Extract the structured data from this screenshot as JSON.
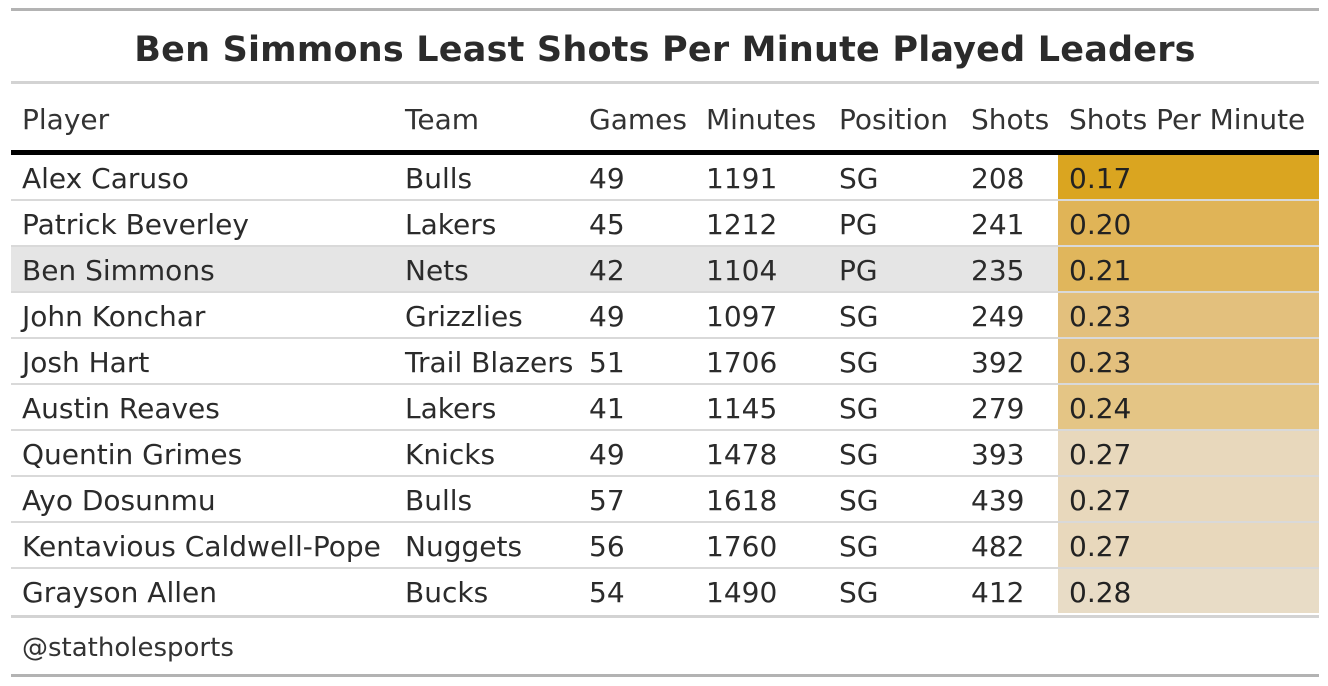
{
  "title": "Ben Simmons Least Shots Per Minute Played Leaders",
  "source": "@statholesports",
  "colors": {
    "highlight_row": "#e5e5e5",
    "scale_low": "#daa520",
    "scale_high": "#e8dcc6"
  },
  "chart_data": {
    "type": "table",
    "columns": [
      "Player",
      "Team",
      "Games",
      "Minutes",
      "Position",
      "Shots",
      "Shots Per Minute"
    ],
    "highlight_player": "Ben Simmons",
    "rows": [
      {
        "player": "Alex Caruso",
        "team": "Bulls",
        "games": "49",
        "minutes": "1191",
        "position": "SG",
        "shots": "208",
        "spm": "0.17",
        "color": "#daa520"
      },
      {
        "player": "Patrick Beverley",
        "team": "Lakers",
        "games": "45",
        "minutes": "1212",
        "position": "PG",
        "shots": "241",
        "spm": "0.20",
        "color": "#e0b457"
      },
      {
        "player": "Ben Simmons",
        "team": "Nets",
        "games": "42",
        "minutes": "1104",
        "position": "PG",
        "shots": "235",
        "spm": "0.21",
        "color": "#e0b65c"
      },
      {
        "player": "John Konchar",
        "team": "Grizzlies",
        "games": "49",
        "minutes": "1097",
        "position": "SG",
        "shots": "249",
        "spm": "0.23",
        "color": "#e3c07d"
      },
      {
        "player": "Josh Hart",
        "team": "Trail Blazers",
        "games": "51",
        "minutes": "1706",
        "position": "SG",
        "shots": "392",
        "spm": "0.23",
        "color": "#e3c07d"
      },
      {
        "player": "Austin Reaves",
        "team": "Lakers",
        "games": "41",
        "minutes": "1145",
        "position": "SG",
        "shots": "279",
        "spm": "0.24",
        "color": "#e4c585"
      },
      {
        "player": "Quentin Grimes",
        "team": "Knicks",
        "games": "49",
        "minutes": "1478",
        "position": "SG",
        "shots": "393",
        "spm": "0.27",
        "color": "#e8d8bc"
      },
      {
        "player": "Ayo Dosunmu",
        "team": "Bulls",
        "games": "57",
        "minutes": "1618",
        "position": "SG",
        "shots": "439",
        "spm": "0.27",
        "color": "#e8d8bc"
      },
      {
        "player": "Kentavious Caldwell-Pope",
        "team": "Nuggets",
        "games": "56",
        "minutes": "1760",
        "position": "SG",
        "shots": "482",
        "spm": "0.27",
        "color": "#e8d8bc"
      },
      {
        "player": "Grayson Allen",
        "team": "Bucks",
        "games": "54",
        "minutes": "1490",
        "position": "SG",
        "shots": "412",
        "spm": "0.28",
        "color": "#e8dcc6"
      }
    ]
  }
}
